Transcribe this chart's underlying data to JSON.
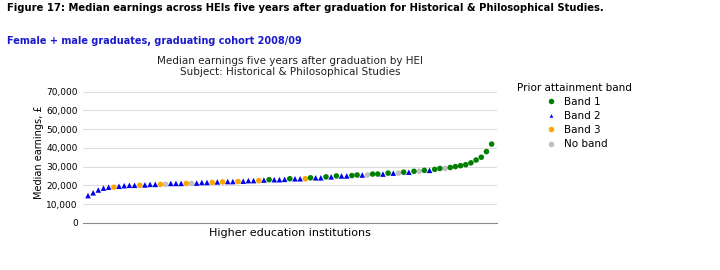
{
  "title_line1": "Figure 17: Median earnings across HEIs five years after graduation for Historical & Philosophical Studies.",
  "title_line2": "Female + male graduates, graduating cohort 2008/09",
  "chart_title_line1": "Median earnings five years after graduation by HEI",
  "chart_title_line2": "Subject: Historical & Philosophical Studies",
  "xlabel": "Higher education institutions",
  "ylabel": "Median earnings, £",
  "ylim": [
    0,
    75000
  ],
  "yticks": [
    0,
    10000,
    20000,
    30000,
    40000,
    50000,
    60000,
    70000
  ],
  "ytick_labels": [
    "0",
    "10,000",
    "20,000",
    "30,000",
    "40,000",
    "50,000",
    "60,000",
    "70,000"
  ],
  "band1_color": "#008000",
  "band2_color": "#0000EE",
  "band3_color": "#FFA500",
  "noband_color": "#C0C0C0",
  "legend_title": "Prior attainment band",
  "legend_labels": [
    "Band 1",
    "Band 2",
    "Band 3",
    "No band"
  ],
  "background_color": "#ffffff",
  "fig_title_color1": "#000000",
  "fig_title_color2": "#1a1acd",
  "band2_data": [
    14500,
    16000,
    17500,
    18500,
    19000,
    19500,
    19800,
    20000,
    20000,
    20200,
    20500,
    20500,
    21000,
    21000,
    21000,
    21200,
    21500,
    21500,
    21800,
    22000,
    22000,
    22200,
    22500,
    22500,
    22800,
    23000,
    23000,
    23200,
    23500,
    23500,
    24000,
    24000,
    24500,
    25000,
    25000,
    25500,
    26000,
    26500,
    27000,
    28000
  ],
  "band1_data": [
    23000,
    23500,
    24000,
    24500,
    25000,
    25200,
    25500,
    26000,
    26000,
    26500,
    27000,
    27500,
    28000,
    28500,
    29000,
    29500,
    30000,
    30500,
    31000,
    32000,
    33500,
    35000,
    38000,
    42000
  ],
  "band3_data": [
    19000,
    20000,
    20500,
    21000,
    21500,
    21800,
    22000,
    22500,
    23500
  ],
  "noband_data": [
    20500,
    21000,
    25500,
    26500,
    27500,
    29000
  ]
}
